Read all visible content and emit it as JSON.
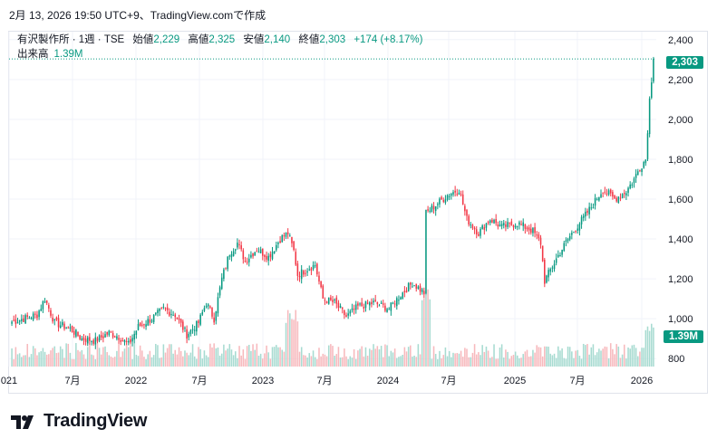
{
  "header": {
    "caption": "2月 13, 2026 19:50 UTC+9、TradingView.comで作成"
  },
  "legend": {
    "symbol": "有沢製作所 · 1週 · TSE",
    "open_label": "始値",
    "open": "2,229",
    "high_label": "高値",
    "high": "2,325",
    "low_label": "安値",
    "low": "2,140",
    "close_label": "終値",
    "close": "2,303",
    "change": "+174 (+8.17%)",
    "volume_label": "出来高",
    "volume": "1.39M"
  },
  "colors": {
    "up": "#089981",
    "down": "#f23645",
    "vol_up": "#a7dbd1",
    "vol_down": "#f7b9bd",
    "grid": "#f0f3fa"
  },
  "chart_data": {
    "type": "candlestick",
    "ylim": [
      760,
      2440
    ],
    "y_ticks": [
      "2,400",
      "2,200",
      "2,000",
      "1,800",
      "1,600",
      "1,400",
      "1,200",
      "1,000",
      "800"
    ],
    "x_ticks": [
      "021",
      "7月",
      "2022",
      "7月",
      "2023",
      "7月",
      "2024",
      "7月",
      "2025",
      "7月",
      "2026"
    ],
    "last_price": "2,303",
    "last_volume": "1.39M",
    "price_path": [
      {
        "t": 0,
        "v": 985
      },
      {
        "t": 6,
        "v": 1000
      },
      {
        "t": 13,
        "v": 1020
      },
      {
        "t": 17,
        "v": 1100
      },
      {
        "t": 22,
        "v": 980
      },
      {
        "t": 30,
        "v": 950
      },
      {
        "t": 36,
        "v": 900
      },
      {
        "t": 43,
        "v": 890
      },
      {
        "t": 50,
        "v": 930
      },
      {
        "t": 55,
        "v": 910
      },
      {
        "t": 60,
        "v": 870
      },
      {
        "t": 65,
        "v": 960
      },
      {
        "t": 72,
        "v": 1000
      },
      {
        "t": 78,
        "v": 1050
      },
      {
        "t": 84,
        "v": 1020
      },
      {
        "t": 90,
        "v": 920
      },
      {
        "t": 96,
        "v": 980
      },
      {
        "t": 100,
        "v": 1080
      },
      {
        "t": 104,
        "v": 1000
      },
      {
        "t": 108,
        "v": 1200
      },
      {
        "t": 112,
        "v": 1330
      },
      {
        "t": 116,
        "v": 1380
      },
      {
        "t": 120,
        "v": 1290
      },
      {
        "t": 126,
        "v": 1350
      },
      {
        "t": 132,
        "v": 1310
      },
      {
        "t": 138,
        "v": 1400
      },
      {
        "t": 142,
        "v": 1430
      },
      {
        "t": 145,
        "v": 1340
      },
      {
        "t": 147,
        "v": 1220
      },
      {
        "t": 152,
        "v": 1250
      },
      {
        "t": 156,
        "v": 1270
      },
      {
        "t": 160,
        "v": 1100
      },
      {
        "t": 166,
        "v": 1080
      },
      {
        "t": 172,
        "v": 1010
      },
      {
        "t": 178,
        "v": 1060
      },
      {
        "t": 186,
        "v": 1080
      },
      {
        "t": 194,
        "v": 1050
      },
      {
        "t": 200,
        "v": 1120
      },
      {
        "t": 206,
        "v": 1180
      },
      {
        "t": 212,
        "v": 1130
      },
      {
        "t": 213,
        "v": 1530
      },
      {
        "t": 218,
        "v": 1570
      },
      {
        "t": 224,
        "v": 1620
      },
      {
        "t": 230,
        "v": 1650
      },
      {
        "t": 234,
        "v": 1500
      },
      {
        "t": 240,
        "v": 1430
      },
      {
        "t": 246,
        "v": 1500
      },
      {
        "t": 252,
        "v": 1460
      },
      {
        "t": 260,
        "v": 1480
      },
      {
        "t": 268,
        "v": 1440
      },
      {
        "t": 272,
        "v": 1380
      },
      {
        "t": 274,
        "v": 1190
      },
      {
        "t": 280,
        "v": 1300
      },
      {
        "t": 286,
        "v": 1400
      },
      {
        "t": 292,
        "v": 1480
      },
      {
        "t": 298,
        "v": 1560
      },
      {
        "t": 304,
        "v": 1650
      },
      {
        "t": 310,
        "v": 1600
      },
      {
        "t": 316,
        "v": 1640
      },
      {
        "t": 320,
        "v": 1700
      },
      {
        "t": 323,
        "v": 1760
      },
      {
        "t": 326,
        "v": 1800
      },
      {
        "t": 328,
        "v": 2100
      },
      {
        "t": 330,
        "v": 2303
      }
    ]
  }
}
